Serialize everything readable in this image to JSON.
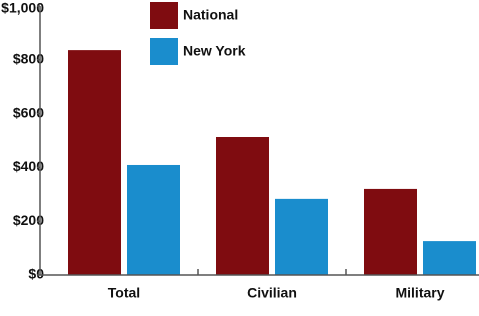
{
  "chart_data": {
    "type": "bar",
    "categories": [
      "Total",
      "Civilian",
      "Military"
    ],
    "series": [
      {
        "name": "National",
        "color": "#7f0c10",
        "values": [
          836,
          513,
          320
        ]
      },
      {
        "name": "New York",
        "color": "#1a8dcd",
        "values": [
          409,
          283,
          126
        ]
      }
    ],
    "ylim": [
      0,
      1000
    ],
    "yticks": [
      {
        "value": 0,
        "label": "$0"
      },
      {
        "value": 200,
        "label": "$200"
      },
      {
        "value": 400,
        "label": "$400"
      },
      {
        "value": 600,
        "label": "$600"
      },
      {
        "value": 800,
        "label": "$800"
      },
      {
        "value": 1000,
        "label": "$1,000"
      }
    ],
    "grid": false
  }
}
